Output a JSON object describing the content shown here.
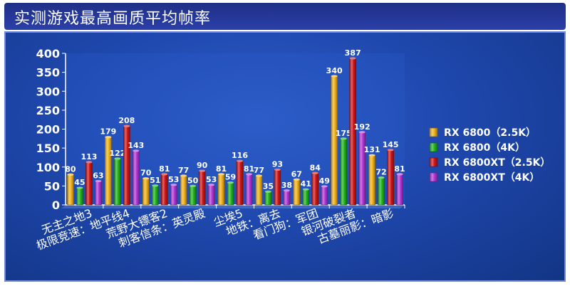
{
  "title": "实测游戏最高画质平均帧率",
  "colors": {
    "title_bg": "#2337a0",
    "panel_bg": "#1f48ae",
    "text": "#ffffff",
    "series": [
      "#f2b21a",
      "#22b51c",
      "#d21616",
      "#b436d8"
    ]
  },
  "chart_data": {
    "type": "bar",
    "title": "实测游戏最高画质平均帧率",
    "categories": [
      "无主之地3",
      "极限竞速：地平线4",
      "荒野大镖客2",
      "刺客信条：英灵殿",
      "尘埃5",
      "地铁：离去",
      "看门狗：军团",
      "银河破裂者",
      "古墓丽影：暗影"
    ],
    "series": [
      {
        "name": "RX 6800（2.5K）",
        "values": [
          80,
          179,
          70,
          77,
          81,
          77,
          67,
          340,
          131
        ]
      },
      {
        "name": "RX 6800（4K）",
        "values": [
          45,
          122,
          51,
          50,
          59,
          35,
          41,
          175,
          72
        ]
      },
      {
        "name": "RX 6800XT（2.5K）",
        "values": [
          113,
          208,
          81,
          90,
          116,
          93,
          84,
          387,
          145
        ]
      },
      {
        "name": "RX 6800XT（4K）",
        "values": [
          63,
          143,
          53,
          53,
          81,
          38,
          49,
          192,
          81
        ]
      }
    ],
    "ylim": [
      0,
      400
    ],
    "yticks": [
      0,
      50,
      100,
      150,
      200,
      250,
      300,
      350,
      400
    ],
    "xlabel": "",
    "ylabel": "",
    "grid": false,
    "legend": "right"
  }
}
